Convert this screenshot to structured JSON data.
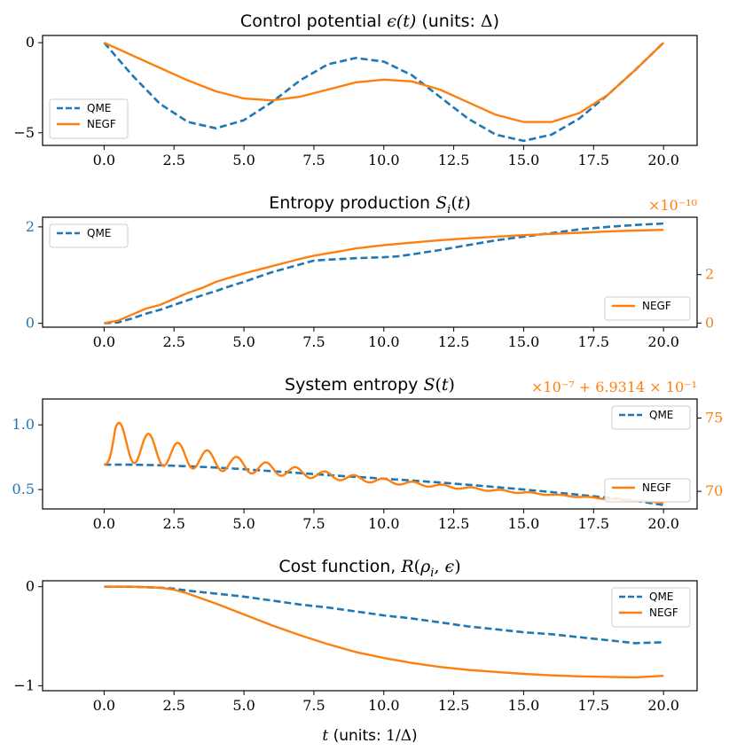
{
  "colors": {
    "qme": "#1f77b4",
    "negf": "#ff7f0e"
  },
  "x_axis_label": "t (units: 1/Δ)",
  "chart_data": [
    {
      "type": "line",
      "title": "Control potential ε(t) (units: Δ)",
      "xlim": [
        -2.2,
        21.2
      ],
      "ylim": [
        -5.7,
        0.4
      ],
      "xticks": [
        "0.0",
        "2.5",
        "5.0",
        "7.5",
        "10.0",
        "12.5",
        "15.0",
        "17.5",
        "20.0"
      ],
      "yticks_left": [
        {
          "v": 0,
          "label": "0"
        },
        {
          "v": -5,
          "label": "−5"
        }
      ],
      "legend": "lower-left",
      "series": [
        {
          "name": "QME",
          "style": "dashed",
          "axis": "left",
          "x": [
            0,
            1,
            2,
            3,
            4,
            5,
            6,
            7,
            8,
            9,
            10,
            11,
            12,
            13,
            14,
            15,
            16,
            17,
            18,
            19,
            20
          ],
          "y": [
            0,
            -1.8,
            -3.4,
            -4.4,
            -4.75,
            -4.3,
            -3.3,
            -2.1,
            -1.2,
            -0.85,
            -1.05,
            -1.8,
            -3.0,
            -4.2,
            -5.1,
            -5.45,
            -5.1,
            -4.2,
            -2.9,
            -1.5,
            0
          ]
        },
        {
          "name": "NEGF",
          "style": "solid",
          "axis": "left",
          "x": [
            0,
            1,
            2,
            3,
            4,
            5,
            6,
            7,
            8,
            9,
            10,
            11,
            12,
            13,
            14,
            15,
            16,
            17,
            18,
            19,
            20
          ],
          "y": [
            0,
            -0.7,
            -1.4,
            -2.1,
            -2.7,
            -3.1,
            -3.2,
            -3.0,
            -2.6,
            -2.2,
            -2.05,
            -2.15,
            -2.6,
            -3.3,
            -4.0,
            -4.4,
            -4.4,
            -3.9,
            -2.9,
            -1.5,
            0
          ]
        }
      ]
    },
    {
      "type": "line",
      "title": "Entropy production S_i(t)",
      "xlim": [
        -2.2,
        21.2
      ],
      "ylim": [
        -0.08,
        2.2
      ],
      "ylim_right": [
        -0.17,
        4.37
      ],
      "xticks": [
        "0.0",
        "2.5",
        "5.0",
        "7.5",
        "10.0",
        "12.5",
        "15.0",
        "17.5",
        "20.0"
      ],
      "yticks_left": [
        {
          "v": 0,
          "label": "0"
        },
        {
          "v": 2,
          "label": "2"
        }
      ],
      "yticks_right": [
        {
          "v": 0,
          "label": "0"
        },
        {
          "v": 2,
          "label": "2"
        }
      ],
      "right_offset_label": "×10⁻¹⁰",
      "legend_left": "upper-left",
      "legend_right": "lower-right",
      "series": [
        {
          "name": "QME",
          "style": "dashed",
          "axis": "left",
          "x": [
            0,
            0.5,
            1,
            1.5,
            2,
            2.5,
            3,
            3.5,
            4,
            4.5,
            5,
            5.5,
            6,
            6.5,
            7,
            7.5,
            8,
            9,
            10,
            10.5,
            11,
            12,
            13,
            14,
            15,
            16,
            17,
            18,
            19,
            20
          ],
          "y": [
            0,
            0.02,
            0.1,
            0.2,
            0.28,
            0.38,
            0.48,
            0.58,
            0.67,
            0.77,
            0.86,
            0.96,
            1.06,
            1.14,
            1.22,
            1.3,
            1.32,
            1.35,
            1.37,
            1.39,
            1.43,
            1.52,
            1.62,
            1.72,
            1.8,
            1.87,
            1.95,
            2.0,
            2.04,
            2.07
          ]
        },
        {
          "name": "NEGF",
          "style": "solid",
          "axis": "right",
          "x": [
            0,
            0.5,
            1,
            1.5,
            2,
            2.5,
            3,
            3.5,
            4,
            4.5,
            5,
            5.5,
            6,
            6.5,
            7,
            7.5,
            8,
            8.5,
            9,
            9.5,
            10,
            11,
            12,
            13,
            14,
            15,
            16,
            17,
            18,
            19,
            20
          ],
          "y": [
            0,
            0.1,
            0.35,
            0.6,
            0.75,
            1.0,
            1.25,
            1.45,
            1.7,
            1.88,
            2.05,
            2.2,
            2.35,
            2.5,
            2.65,
            2.78,
            2.88,
            2.98,
            3.08,
            3.15,
            3.22,
            3.32,
            3.42,
            3.5,
            3.57,
            3.63,
            3.68,
            3.73,
            3.78,
            3.82,
            3.85
          ]
        }
      ]
    },
    {
      "type": "line",
      "title": "System entropy S(t)",
      "xlim": [
        -2.2,
        21.2
      ],
      "ylim": [
        0.35,
        1.2
      ],
      "ylim_right": [
        68.8,
        76.3
      ],
      "xticks": [
        "0.0",
        "2.5",
        "5.0",
        "7.5",
        "10.0",
        "12.5",
        "15.0",
        "17.5",
        "20.0"
      ],
      "yticks_left": [
        {
          "v": 0.5,
          "label": "0.5"
        },
        {
          "v": 1.0,
          "label": "1.0"
        }
      ],
      "yticks_right": [
        {
          "v": 70,
          "label": "70"
        },
        {
          "v": 75,
          "label": "75"
        }
      ],
      "right_offset_label": "×10⁻⁷ + 6.9314 × 10⁻¹",
      "legend_left": "upper-right",
      "legend_right": "lower-right",
      "series": [
        {
          "name": "QME",
          "style": "dashed",
          "axis": "left",
          "x": [
            0,
            1,
            2,
            3,
            4,
            5,
            6,
            7,
            8,
            9,
            10,
            11,
            12,
            13,
            14,
            15,
            16,
            17,
            18,
            19,
            20
          ],
          "y": [
            0.693,
            0.692,
            0.688,
            0.68,
            0.67,
            0.657,
            0.642,
            0.627,
            0.612,
            0.598,
            0.584,
            0.57,
            0.554,
            0.537,
            0.519,
            0.5,
            0.48,
            0.459,
            0.437,
            0.413,
            0.38
          ]
        },
        {
          "name": "NEGF",
          "style": "wavy",
          "axis": "right",
          "x_start": 0,
          "x_end": 20,
          "y_start": 71.8,
          "y_end": 69.2,
          "wave_peak_x": 1.6,
          "wave_peak_y": 74.8,
          "wave_period": 1.05
        }
      ]
    },
    {
      "type": "line",
      "title": "Cost function, R(ρ_i, ε)",
      "xlabel": "t (units: 1/Δ)",
      "xlim": [
        -2.2,
        21.2
      ],
      "ylim": [
        -1.05,
        0.06
      ],
      "xticks": [
        "0.0",
        "2.5",
        "5.0",
        "7.5",
        "10.0",
        "12.5",
        "15.0",
        "17.5",
        "20.0"
      ],
      "yticks_left": [
        {
          "v": 0,
          "label": "0"
        },
        {
          "v": -1,
          "label": "−1"
        }
      ],
      "legend": "upper-right",
      "series": [
        {
          "name": "QME",
          "style": "dashed",
          "axis": "left",
          "x": [
            0,
            1,
            2,
            2.5,
            3,
            4,
            5,
            6,
            7,
            8,
            9,
            10,
            11,
            12,
            13,
            14,
            15,
            16,
            17,
            18,
            19,
            20
          ],
          "y": [
            0,
            0,
            -0.01,
            -0.02,
            -0.04,
            -0.07,
            -0.1,
            -0.14,
            -0.18,
            -0.21,
            -0.25,
            -0.29,
            -0.32,
            -0.36,
            -0.4,
            -0.43,
            -0.46,
            -0.48,
            -0.51,
            -0.54,
            -0.57,
            -0.56
          ]
        },
        {
          "name": "NEGF",
          "style": "solid",
          "axis": "left",
          "x": [
            0,
            1,
            2,
            2.5,
            3,
            4,
            5,
            6,
            7,
            8,
            9,
            10,
            11,
            12,
            13,
            14,
            15,
            16,
            17,
            18,
            19,
            20
          ],
          "y": [
            0,
            0,
            -0.01,
            -0.03,
            -0.07,
            -0.17,
            -0.28,
            -0.39,
            -0.49,
            -0.58,
            -0.66,
            -0.72,
            -0.77,
            -0.81,
            -0.84,
            -0.86,
            -0.88,
            -0.895,
            -0.905,
            -0.91,
            -0.915,
            -0.9
          ]
        }
      ]
    }
  ]
}
